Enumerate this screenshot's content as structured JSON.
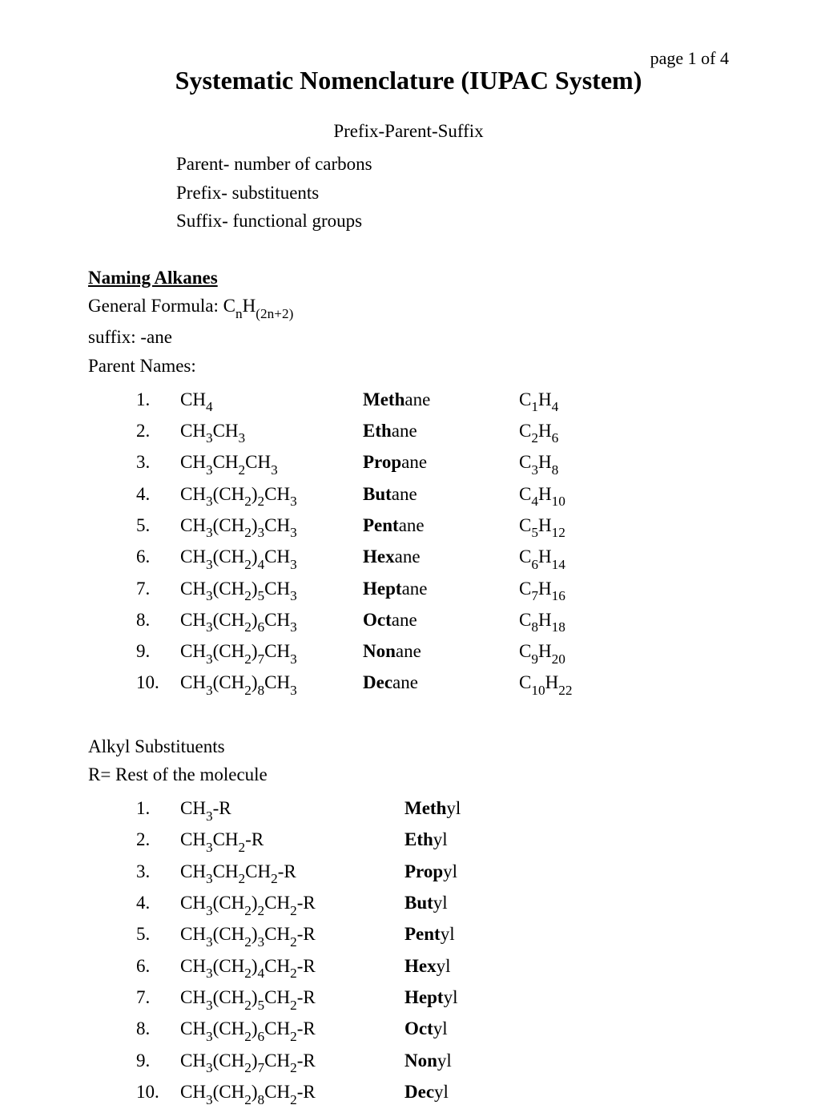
{
  "page_label": "page 1 of 4",
  "title": "Systematic Nomenclature (IUPAC System)",
  "structure": "Prefix-Parent-Suffix",
  "descriptions": {
    "parent": "Parent- number of carbons",
    "prefix": "Prefix- substituents",
    "suffix": "Suffix- functional groups"
  },
  "alkanes": {
    "heading": "Naming Alkanes",
    "general_formula_label": "General Formula: ",
    "suffix_line": "suffix: -ane",
    "parent_names_label": "Parent Names:",
    "rows": [
      {
        "n": "1.",
        "bold": "Meth",
        "rest": "ane",
        "cn": "1",
        "hn": "4"
      },
      {
        "n": "2.",
        "bold": "Eth",
        "rest": "ane",
        "cn": "2",
        "hn": "6"
      },
      {
        "n": "3.",
        "bold": "Prop",
        "rest": "ane",
        "cn": "3",
        "hn": "8"
      },
      {
        "n": "4.",
        "bold": "But",
        "rest": "ane",
        "cn": "4",
        "hn": "10"
      },
      {
        "n": "5.",
        "bold": "Pent",
        "rest": "ane",
        "cn": "5",
        "hn": "12"
      },
      {
        "n": "6.",
        "bold": "Hex",
        "rest": "ane",
        "cn": "6",
        "hn": "14"
      },
      {
        "n": "7.",
        "bold": "Hept",
        "rest": "ane",
        "cn": "7",
        "hn": "16"
      },
      {
        "n": "8.",
        "bold": "Oct",
        "rest": "ane",
        "cn": "8",
        "hn": "18"
      },
      {
        "n": "9.",
        "bold": "Non",
        "rest": "ane",
        "cn": "9",
        "hn": "20"
      },
      {
        "n": "10.",
        "bold": "Dec",
        "rest": "ane",
        "cn": "10",
        "hn": "22"
      }
    ]
  },
  "substituents": {
    "heading": "Alkyl Substituents",
    "r_line": "R= Rest of the molecule",
    "rows": [
      {
        "n": "1.",
        "bold": "Meth",
        "rest": "yl"
      },
      {
        "n": "2.",
        "bold": "Eth",
        "rest": "yl"
      },
      {
        "n": "3.",
        "bold": "Prop",
        "rest": "yl"
      },
      {
        "n": "4.",
        "bold": "But",
        "rest": "yl"
      },
      {
        "n": "5.",
        "bold": "Pent",
        "rest": "yl"
      },
      {
        "n": "6.",
        "bold": "Hex",
        "rest": "yl"
      },
      {
        "n": "7.",
        "bold": "Hept",
        "rest": "yl"
      },
      {
        "n": "8.",
        "bold": "Oct",
        "rest": "yl"
      },
      {
        "n": "9.",
        "bold": "Non",
        "rest": "yl"
      },
      {
        "n": "10.",
        "bold": "Dec",
        "rest": "yl"
      }
    ]
  }
}
